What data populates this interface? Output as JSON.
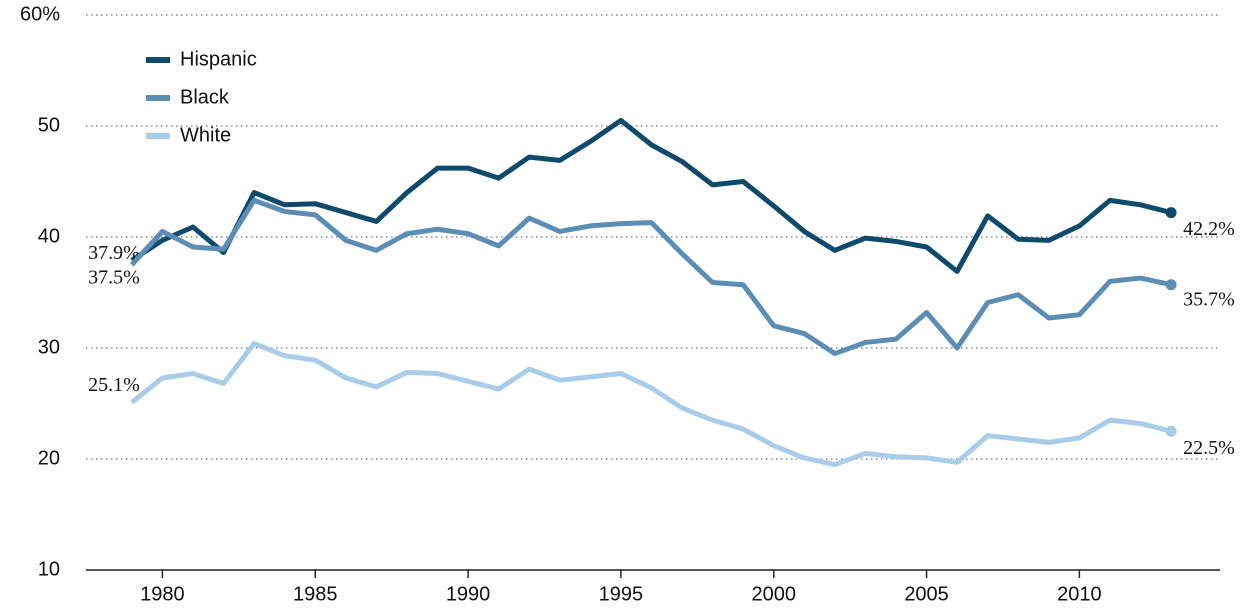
{
  "chart_data": {
    "type": "line",
    "x": [
      1979,
      1980,
      1981,
      1982,
      1983,
      1984,
      1985,
      1986,
      1987,
      1988,
      1989,
      1990,
      1991,
      1992,
      1993,
      1994,
      1995,
      1996,
      1997,
      1998,
      1999,
      2000,
      2001,
      2002,
      2003,
      2004,
      2005,
      2006,
      2007,
      2008,
      2009,
      2010,
      2011,
      2012,
      2013
    ],
    "series": [
      {
        "name": "Hispanic",
        "color": "#0e4a6b",
        "values": [
          37.9,
          39.7,
          40.9,
          38.6,
          44.0,
          42.9,
          43.0,
          42.2,
          41.4,
          44.0,
          46.2,
          46.2,
          45.3,
          47.2,
          46.9,
          48.6,
          50.5,
          48.3,
          46.8,
          44.7,
          45.0,
          42.8,
          40.5,
          38.8,
          39.9,
          39.6,
          39.1,
          36.9,
          41.9,
          39.8,
          39.7,
          41.0,
          43.3,
          42.9,
          42.2
        ],
        "value_labels": [
          "37.9%",
          null,
          null,
          null,
          null,
          null,
          null,
          null,
          null,
          null,
          null,
          null,
          null,
          null,
          null,
          null,
          null,
          null,
          null,
          null,
          null,
          null,
          null,
          null,
          null,
          null,
          null,
          null,
          null,
          null,
          null,
          null,
          null,
          null,
          "42.2%"
        ]
      },
      {
        "name": "Black",
        "color": "#5b8db5",
        "values": [
          37.5,
          40.5,
          39.1,
          38.9,
          43.3,
          42.3,
          42.0,
          39.7,
          38.8,
          40.3,
          40.7,
          40.3,
          39.2,
          41.7,
          40.5,
          41.0,
          41.2,
          41.3,
          38.5,
          35.9,
          35.7,
          32.0,
          31.3,
          29.5,
          30.5,
          30.8,
          33.2,
          30.0,
          34.1,
          34.8,
          32.7,
          33.0,
          36.0,
          36.3,
          35.7
        ],
        "value_labels": [
          "37.5%",
          null,
          null,
          null,
          null,
          null,
          null,
          null,
          null,
          null,
          null,
          null,
          null,
          null,
          null,
          null,
          null,
          null,
          null,
          null,
          null,
          null,
          null,
          null,
          null,
          null,
          null,
          null,
          null,
          null,
          null,
          null,
          null,
          null,
          "35.7%"
        ]
      },
      {
        "name": "White",
        "color": "#a9cde9",
        "values": [
          25.1,
          27.3,
          27.7,
          26.8,
          30.4,
          29.3,
          28.9,
          27.3,
          26.5,
          27.8,
          27.7,
          27.0,
          26.3,
          28.1,
          27.1,
          27.4,
          27.7,
          26.4,
          24.6,
          23.5,
          22.7,
          21.2,
          20.1,
          19.5,
          20.5,
          20.2,
          20.1,
          19.7,
          22.1,
          21.8,
          21.5,
          21.9,
          23.5,
          23.2,
          22.5
        ],
        "value_labels": [
          "25.1%",
          null,
          null,
          null,
          null,
          null,
          null,
          null,
          null,
          null,
          null,
          null,
          null,
          null,
          null,
          null,
          null,
          null,
          null,
          null,
          null,
          null,
          null,
          null,
          null,
          null,
          null,
          null,
          null,
          null,
          null,
          null,
          null,
          null,
          "22.5%"
        ]
      }
    ],
    "xlim": [
      1977.5,
      2014.6
    ],
    "xticks": [
      1980,
      1985,
      1990,
      1995,
      2000,
      2005,
      2010
    ],
    "ylim": [
      10,
      60
    ],
    "yticks": [
      {
        "value": 60,
        "label": "60%"
      },
      50,
      40,
      30,
      20,
      10
    ],
    "grid": true,
    "legend": "top-left"
  }
}
